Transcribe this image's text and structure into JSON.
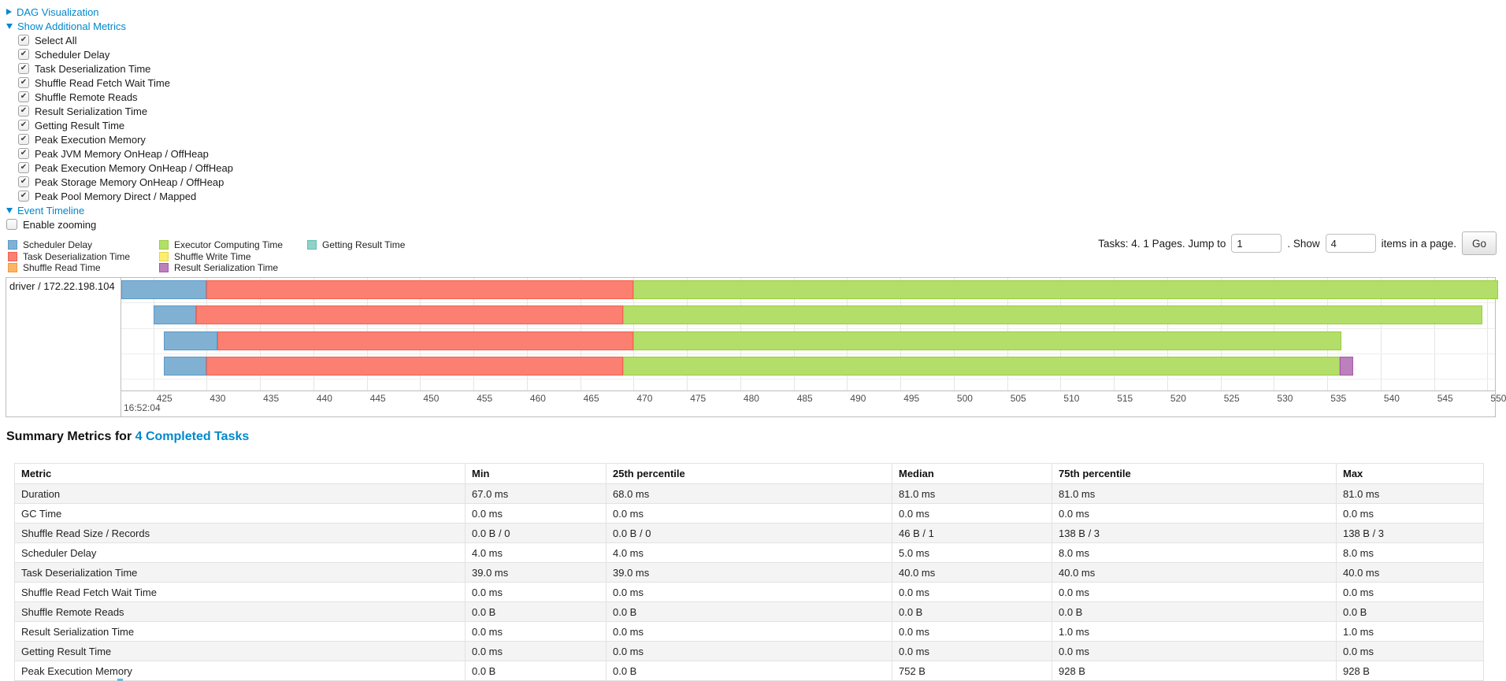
{
  "colors": {
    "link": "#0088cc",
    "segments": {
      "scheduler_delay": {
        "fill": "#80B1D3",
        "border": "#5B99C9"
      },
      "task_deserialization": {
        "fill": "#FB8072",
        "border": "#F4604E"
      },
      "shuffle_read": {
        "fill": "#FDB462",
        "border": "#F09A3C"
      },
      "executor_computing": {
        "fill": "#B3DE69",
        "border": "#9ACD3E"
      },
      "shuffle_write": {
        "fill": "#FFED6F",
        "border": "#E6D34F"
      },
      "result_serialization": {
        "fill": "#BC80BD",
        "border": "#A65BA8"
      },
      "getting_result": {
        "fill": "#8DD3C7",
        "border": "#65BFAF"
      }
    },
    "grid": "#e5e5e5",
    "box_border": "#bdbdbd"
  },
  "sections": {
    "dag": {
      "label": "DAG Visualization",
      "state": "collapsed"
    },
    "additional_metrics": {
      "label": "Show Additional Metrics",
      "state": "expanded"
    },
    "event_timeline": {
      "label": "Event Timeline",
      "state": "expanded"
    }
  },
  "metrics_panel": {
    "items": [
      {
        "label": "Select All",
        "checked": true
      },
      {
        "label": "Scheduler Delay",
        "checked": true
      },
      {
        "label": "Task Deserialization Time",
        "checked": true
      },
      {
        "label": "Shuffle Read Fetch Wait Time",
        "checked": true
      },
      {
        "label": "Shuffle Remote Reads",
        "checked": true
      },
      {
        "label": "Result Serialization Time",
        "checked": true
      },
      {
        "label": "Getting Result Time",
        "checked": true
      },
      {
        "label": "Peak Execution Memory",
        "checked": true
      },
      {
        "label": "Peak JVM Memory OnHeap / OffHeap",
        "checked": true
      },
      {
        "label": "Peak Execution Memory OnHeap / OffHeap",
        "checked": true
      },
      {
        "label": "Peak Storage Memory OnHeap / OffHeap",
        "checked": true
      },
      {
        "label": "Peak Pool Memory Direct / Mapped",
        "checked": true
      }
    ]
  },
  "enable_zooming": {
    "label": "Enable zooming",
    "checked": false
  },
  "legend": {
    "columns": [
      [
        {
          "key": "scheduler_delay",
          "label": "Scheduler Delay"
        },
        {
          "key": "task_deserialization",
          "label": "Task Deserialization Time"
        },
        {
          "key": "shuffle_read",
          "label": "Shuffle Read Time"
        }
      ],
      [
        {
          "key": "executor_computing",
          "label": "Executor Computing Time"
        },
        {
          "key": "shuffle_write",
          "label": "Shuffle Write Time"
        },
        {
          "key": "result_serialization",
          "label": "Result Serialization Time"
        }
      ],
      [
        {
          "key": "getting_result",
          "label": "Getting Result Time"
        }
      ]
    ]
  },
  "pagination": {
    "tasks_pages_label": "Tasks: 4. 1 Pages. Jump to",
    "jump_value": "1",
    "show_label": ". Show",
    "page_size_value": "4",
    "items_label": "items in a page.",
    "go_label": "Go"
  },
  "timeline": {
    "group_label": "driver / 172.22.198.104",
    "major_time_label": "16:52:04"
  },
  "chart_data": {
    "type": "timeline",
    "title": "Event Timeline",
    "group": "driver / 172.22.198.104",
    "x_unit": "milliseconds within second 16:52:04",
    "x_window": [
      422,
      550.7
    ],
    "x_ticks": {
      "start": 425,
      "end": 550,
      "step": 5
    },
    "legend_series": [
      "Scheduler Delay",
      "Task Deserialization Time",
      "Shuffle Read Time",
      "Executor Computing Time",
      "Shuffle Write Time",
      "Result Serialization Time",
      "Getting Result Time"
    ],
    "tasks": [
      {
        "segments": [
          [
            "scheduler_delay",
            422,
            430
          ],
          [
            "task_deserialization",
            430,
            470
          ],
          [
            "executor_computing",
            470,
            551
          ]
        ]
      },
      {
        "segments": [
          [
            "scheduler_delay",
            425,
            429
          ],
          [
            "task_deserialization",
            429,
            469
          ],
          [
            "executor_computing",
            469,
            549.5
          ]
        ]
      },
      {
        "segments": [
          [
            "scheduler_delay",
            426,
            431
          ],
          [
            "task_deserialization",
            431,
            470
          ],
          [
            "executor_computing",
            470,
            536.3
          ]
        ]
      },
      {
        "segments": [
          [
            "scheduler_delay",
            426,
            430
          ],
          [
            "task_deserialization",
            430,
            469
          ],
          [
            "executor_computing",
            469,
            536.2
          ],
          [
            "result_serialization",
            536.2,
            537.4
          ]
        ]
      }
    ]
  },
  "summary": {
    "title_prefix": "Summary Metrics for",
    "title_link": "4 Completed Tasks",
    "columns": [
      "Metric",
      "Min",
      "25th percentile",
      "Median",
      "75th percentile",
      "Max"
    ],
    "rows": [
      {
        "metric": "Duration",
        "values": [
          "67.0 ms",
          "68.0 ms",
          "81.0 ms",
          "81.0 ms",
          "81.0 ms"
        ]
      },
      {
        "metric": "GC Time",
        "values": [
          "0.0 ms",
          "0.0 ms",
          "0.0 ms",
          "0.0 ms",
          "0.0 ms"
        ]
      },
      {
        "metric": "Shuffle Read Size / Records",
        "values": [
          "0.0 B / 0",
          "0.0 B / 0",
          "46 B / 1",
          "138 B / 3",
          "138 B / 3"
        ]
      },
      {
        "metric": "Scheduler Delay",
        "values": [
          "4.0 ms",
          "4.0 ms",
          "5.0 ms",
          "8.0 ms",
          "8.0 ms"
        ]
      },
      {
        "metric": "Task Deserialization Time",
        "values": [
          "39.0 ms",
          "39.0 ms",
          "40.0 ms",
          "40.0 ms",
          "40.0 ms"
        ]
      },
      {
        "metric": "Shuffle Read Fetch Wait Time",
        "values": [
          "0.0 ms",
          "0.0 ms",
          "0.0 ms",
          "0.0 ms",
          "0.0 ms"
        ]
      },
      {
        "metric": "Shuffle Remote Reads",
        "values": [
          "0.0 B",
          "0.0 B",
          "0.0 B",
          "0.0 B",
          "0.0 B"
        ]
      },
      {
        "metric": "Result Serialization Time",
        "values": [
          "0.0 ms",
          "0.0 ms",
          "0.0 ms",
          "1.0 ms",
          "1.0 ms"
        ]
      },
      {
        "metric": "Getting Result Time",
        "values": [
          "0.0 ms",
          "0.0 ms",
          "0.0 ms",
          "0.0 ms",
          "0.0 ms"
        ]
      },
      {
        "metric": "Peak Execution Memory",
        "values": [
          "0.0 B",
          "0.0 B",
          "752 B",
          "928 B",
          "928 B"
        ]
      }
    ]
  }
}
